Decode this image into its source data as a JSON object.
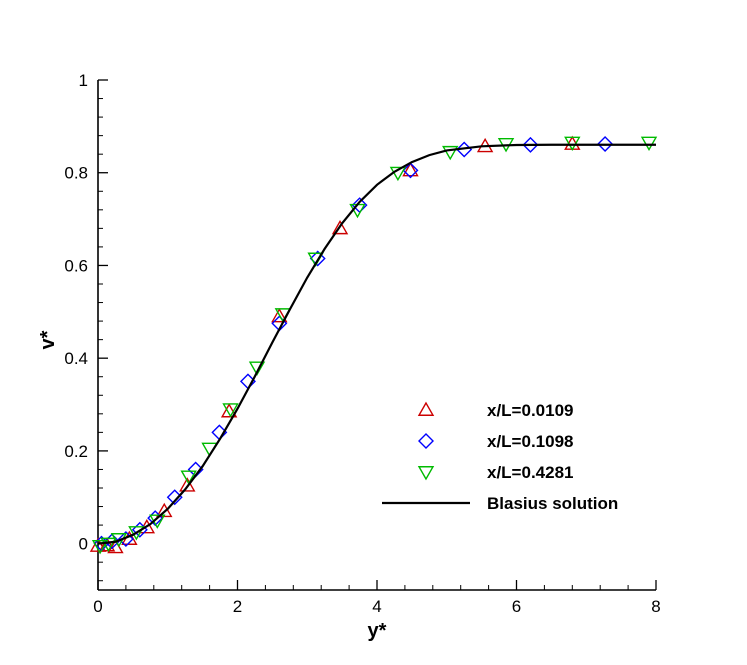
{
  "chart_data": {
    "type": "scatter",
    "xlabel": "y*",
    "ylabel": "v*",
    "xlim": [
      0,
      8
    ],
    "ylim": [
      -0.1,
      1
    ],
    "xticks": [
      0,
      2,
      4,
      6,
      8
    ],
    "yticks": [
      0,
      0.2,
      0.4,
      0.6,
      0.8,
      1
    ],
    "xtick_labels": [
      "0",
      "2",
      "4",
      "6",
      "8"
    ],
    "ytick_labels": [
      "0",
      "0.2",
      "0.4",
      "0.6",
      "0.8",
      "1"
    ],
    "grid": false,
    "legend_position": "lower-right",
    "series": [
      {
        "name": "x/L=0.0109",
        "marker": "triangle-up",
        "color": "#cc0000",
        "x": [
          0.0,
          0.13,
          0.25,
          0.45,
          0.7,
          0.95,
          1.28,
          1.88,
          2.6,
          3.47,
          4.48,
          5.55,
          6.8
        ],
        "y": [
          -0.005,
          -0.004,
          -0.008,
          0.01,
          0.035,
          0.07,
          0.125,
          0.285,
          0.49,
          0.68,
          0.805,
          0.857,
          0.862
        ]
      },
      {
        "name": "x/L=0.1098",
        "marker": "diamond",
        "color": "#0000ff",
        "x": [
          0.05,
          0.2,
          0.4,
          0.6,
          0.82,
          1.1,
          1.4,
          1.74,
          2.15,
          2.6,
          3.15,
          3.75,
          4.48,
          5.25,
          6.2,
          7.27
        ],
        "y": [
          0.0,
          0.005,
          0.01,
          0.03,
          0.055,
          0.1,
          0.16,
          0.24,
          0.35,
          0.475,
          0.615,
          0.73,
          0.805,
          0.85,
          0.86,
          0.862
        ]
      },
      {
        "name": "x/L=0.4281",
        "marker": "triangle-down",
        "color": "#00bb00",
        "x": [
          0.03,
          0.15,
          0.3,
          0.55,
          0.85,
          1.3,
          1.6,
          1.9,
          2.28,
          2.65,
          3.12,
          3.72,
          4.3,
          5.05,
          5.85,
          6.8,
          7.9
        ],
        "y": [
          -0.005,
          0.0,
          0.01,
          0.025,
          0.05,
          0.145,
          0.205,
          0.29,
          0.38,
          0.495,
          0.615,
          0.72,
          0.8,
          0.845,
          0.862,
          0.865,
          0.865
        ]
      },
      {
        "name": "Blasius solution",
        "line": true,
        "color": "#000000",
        "x": [
          0,
          0.25,
          0.5,
          0.75,
          1.0,
          1.25,
          1.5,
          1.75,
          2.0,
          2.25,
          2.5,
          2.75,
          3.0,
          3.25,
          3.5,
          3.75,
          4.0,
          4.25,
          4.5,
          4.75,
          5.0,
          5.5,
          6.0,
          6.5,
          7.0,
          7.5,
          8.0
        ],
        "y": [
          0.0,
          0.004,
          0.019,
          0.042,
          0.075,
          0.117,
          0.167,
          0.226,
          0.291,
          0.361,
          0.434,
          0.505,
          0.574,
          0.636,
          0.691,
          0.737,
          0.774,
          0.802,
          0.823,
          0.838,
          0.848,
          0.857,
          0.8598,
          0.8603,
          0.8604,
          0.8604,
          0.8604
        ]
      }
    ]
  }
}
